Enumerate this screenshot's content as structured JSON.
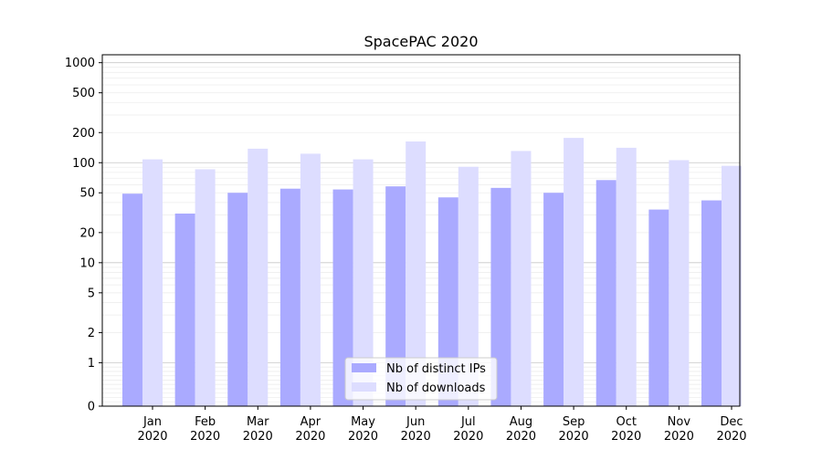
{
  "chart_data": {
    "type": "bar",
    "title": "SpacePAC 2020",
    "xlabel": "",
    "ylabel": "",
    "categories": [
      [
        "Jan",
        "2020"
      ],
      [
        "Feb",
        "2020"
      ],
      [
        "Mar",
        "2020"
      ],
      [
        "Apr",
        "2020"
      ],
      [
        "May",
        "2020"
      ],
      [
        "Jun",
        "2020"
      ],
      [
        "Jul",
        "2020"
      ],
      [
        "Aug",
        "2020"
      ],
      [
        "Sep",
        "2020"
      ],
      [
        "Oct",
        "2020"
      ],
      [
        "Nov",
        "2020"
      ],
      [
        "Dec",
        "2020"
      ]
    ],
    "series": [
      {
        "name": "Nb of distinct IPs",
        "color": "#aaaaff",
        "values": [
          49,
          31,
          50,
          55,
          54,
          58,
          45,
          56,
          50,
          67,
          34,
          42
        ]
      },
      {
        "name": "Nb of downloads",
        "color": "#ddddff",
        "values": [
          108,
          86,
          138,
          123,
          108,
          163,
          91,
          131,
          177,
          141,
          106,
          93
        ]
      }
    ],
    "y_scale": "symlog",
    "ylim": [
      0,
      1200
    ],
    "y_ticks": [
      0,
      1,
      2,
      5,
      10,
      20,
      50,
      100,
      200,
      500,
      1000
    ],
    "grid": "y",
    "legend_position": "bottom-center"
  }
}
